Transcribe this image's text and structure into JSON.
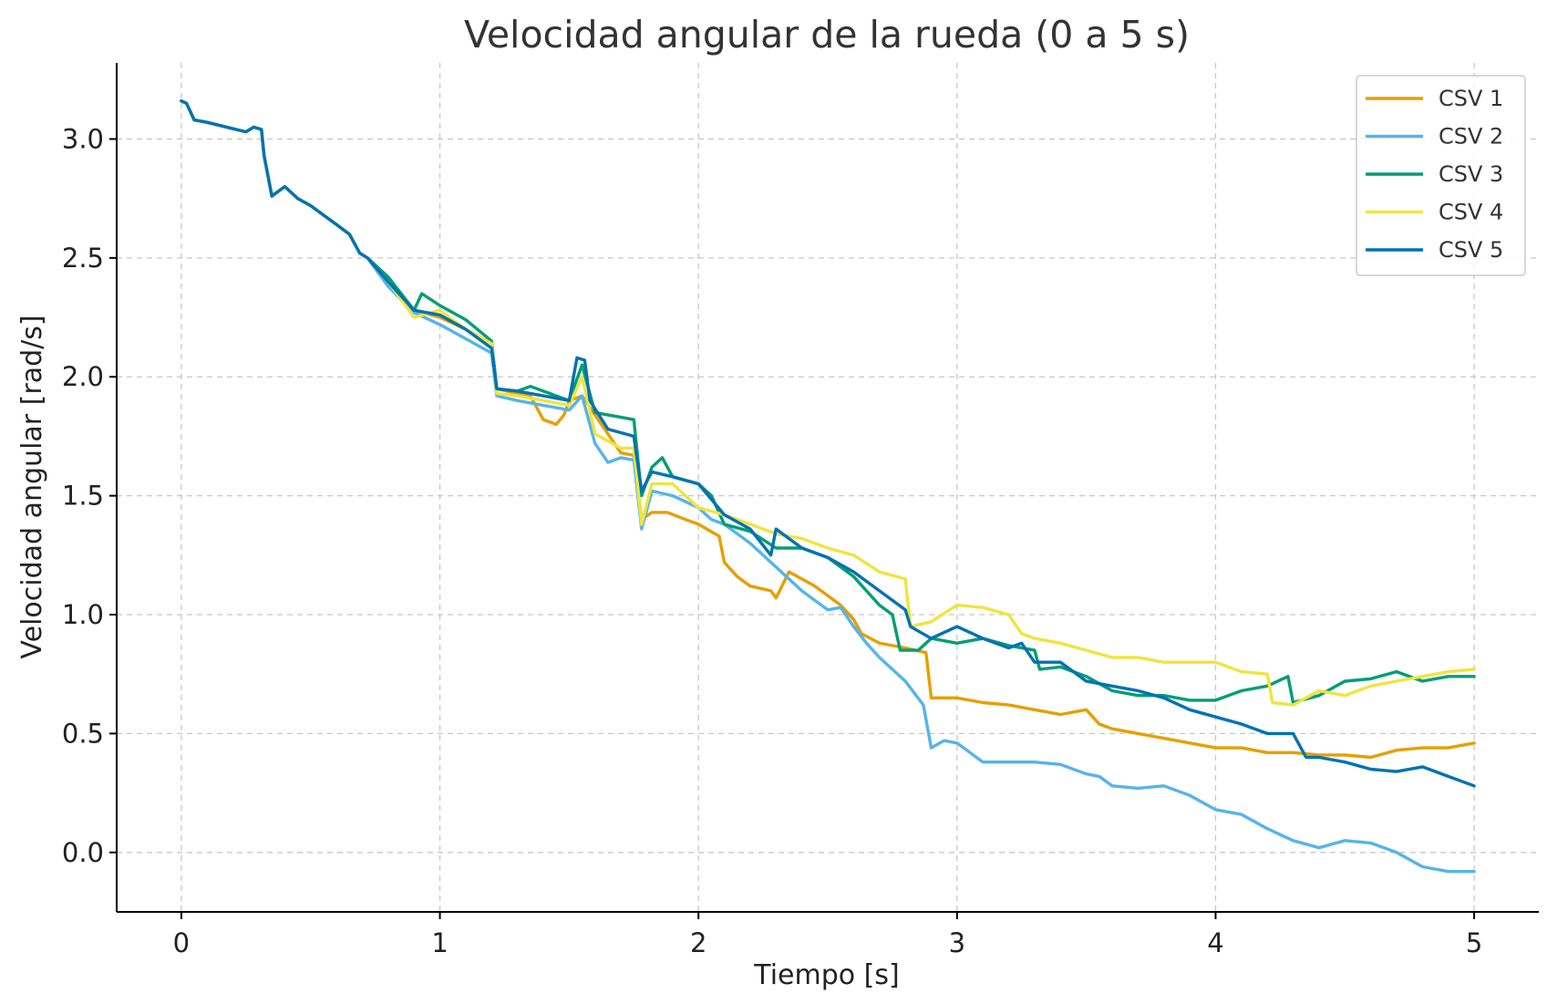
{
  "chart_data": {
    "type": "line",
    "title": "Velocidad angular de la rueda (0 a 5 s)",
    "xlabel": "Tiempo [s]",
    "ylabel": "Velocidad angular [rad/s]",
    "xlim": [
      -0.25,
      5.25
    ],
    "ylim": [
      -0.25,
      3.32
    ],
    "xticks": [
      0,
      1,
      2,
      3,
      4,
      5
    ],
    "yticks": [
      0.0,
      0.5,
      1.0,
      1.5,
      2.0,
      2.5,
      3.0
    ],
    "xtick_labels": [
      "0",
      "1",
      "2",
      "3",
      "4",
      "5"
    ],
    "ytick_labels": [
      "0.0",
      "0.5",
      "1.0",
      "1.5",
      "2.0",
      "2.5",
      "3.0"
    ],
    "grid": true,
    "legend_position": "top-right",
    "series": [
      {
        "name": "CSV 1",
        "color": "#E69F00",
        "x": [
          0,
          0.02,
          0.05,
          0.1,
          0.25,
          0.28,
          0.31,
          0.32,
          0.35,
          0.4,
          0.45,
          0.5,
          0.6,
          0.65,
          0.69,
          0.72,
          0.8,
          0.9,
          1.0,
          1.1,
          1.2,
          1.22,
          1.3,
          1.35,
          1.4,
          1.45,
          1.48,
          1.5,
          1.55,
          1.6,
          1.7,
          1.75,
          1.78,
          1.82,
          1.88,
          1.95,
          2.0,
          2.08,
          2.1,
          2.15,
          2.2,
          2.28,
          2.3,
          2.35,
          2.45,
          2.55,
          2.6,
          2.63,
          2.7,
          2.8,
          2.88,
          2.9,
          3.0,
          3.1,
          3.2,
          3.3,
          3.4,
          3.5,
          3.55,
          3.6,
          3.7,
          3.8,
          3.9,
          4.0,
          4.1,
          4.2,
          4.3,
          4.4,
          4.5,
          4.6,
          4.7,
          4.8,
          4.9,
          5.0
        ],
        "y": [
          3.16,
          3.15,
          3.08,
          3.07,
          3.03,
          3.05,
          3.04,
          2.93,
          2.76,
          2.8,
          2.75,
          2.72,
          2.64,
          2.6,
          2.52,
          2.5,
          2.4,
          2.28,
          2.25,
          2.2,
          2.14,
          1.95,
          1.93,
          1.92,
          1.82,
          1.8,
          1.84,
          1.9,
          1.92,
          1.84,
          1.68,
          1.67,
          1.4,
          1.43,
          1.43,
          1.4,
          1.38,
          1.33,
          1.22,
          1.16,
          1.12,
          1.1,
          1.07,
          1.18,
          1.12,
          1.04,
          0.98,
          0.92,
          0.88,
          0.86,
          0.84,
          0.65,
          0.65,
          0.63,
          0.62,
          0.6,
          0.58,
          0.6,
          0.54,
          0.52,
          0.5,
          0.48,
          0.46,
          0.44,
          0.44,
          0.42,
          0.42,
          0.41,
          0.41,
          0.4,
          0.43,
          0.44,
          0.44,
          0.46
        ]
      },
      {
        "name": "CSV 2",
        "color": "#56B4E9",
        "x": [
          0,
          0.02,
          0.05,
          0.1,
          0.25,
          0.28,
          0.31,
          0.32,
          0.35,
          0.4,
          0.45,
          0.5,
          0.6,
          0.65,
          0.69,
          0.72,
          0.8,
          0.9,
          1.0,
          1.1,
          1.2,
          1.22,
          1.3,
          1.4,
          1.5,
          1.55,
          1.6,
          1.65,
          1.7,
          1.75,
          1.78,
          1.82,
          1.9,
          2.0,
          2.05,
          2.1,
          2.2,
          2.3,
          2.4,
          2.5,
          2.55,
          2.6,
          2.65,
          2.7,
          2.8,
          2.87,
          2.9,
          2.95,
          3.0,
          3.1,
          3.2,
          3.3,
          3.4,
          3.5,
          3.55,
          3.6,
          3.7,
          3.8,
          3.9,
          4.0,
          4.1,
          4.2,
          4.3,
          4.4,
          4.5,
          4.6,
          4.7,
          4.8,
          4.9,
          5.0
        ],
        "y": [
          3.16,
          3.15,
          3.08,
          3.07,
          3.03,
          3.05,
          3.04,
          2.93,
          2.76,
          2.8,
          2.75,
          2.72,
          2.64,
          2.6,
          2.52,
          2.5,
          2.38,
          2.27,
          2.22,
          2.16,
          2.1,
          1.92,
          1.9,
          1.88,
          1.86,
          1.92,
          1.72,
          1.64,
          1.66,
          1.65,
          1.36,
          1.52,
          1.5,
          1.45,
          1.4,
          1.38,
          1.3,
          1.2,
          1.1,
          1.02,
          1.03,
          0.95,
          0.88,
          0.82,
          0.72,
          0.62,
          0.44,
          0.47,
          0.46,
          0.38,
          0.38,
          0.38,
          0.37,
          0.33,
          0.32,
          0.28,
          0.27,
          0.28,
          0.24,
          0.18,
          0.16,
          0.1,
          0.05,
          0.02,
          0.05,
          0.04,
          0.0,
          -0.06,
          -0.08,
          -0.08
        ]
      },
      {
        "name": "CSV 3",
        "color": "#009E73",
        "x": [
          0,
          0.02,
          0.05,
          0.1,
          0.25,
          0.28,
          0.31,
          0.32,
          0.35,
          0.4,
          0.45,
          0.5,
          0.6,
          0.65,
          0.69,
          0.72,
          0.8,
          0.9,
          0.93,
          1.0,
          1.1,
          1.2,
          1.22,
          1.3,
          1.35,
          1.4,
          1.5,
          1.55,
          1.6,
          1.7,
          1.75,
          1.78,
          1.82,
          1.86,
          1.9,
          2.0,
          2.05,
          2.1,
          2.2,
          2.3,
          2.4,
          2.5,
          2.6,
          2.7,
          2.75,
          2.78,
          2.85,
          2.9,
          3.0,
          3.1,
          3.2,
          3.3,
          3.32,
          3.4,
          3.5,
          3.6,
          3.7,
          3.8,
          3.9,
          4.0,
          4.1,
          4.2,
          4.28,
          4.3,
          4.4,
          4.5,
          4.6,
          4.7,
          4.8,
          4.9,
          5.0
        ],
        "y": [
          3.16,
          3.15,
          3.08,
          3.07,
          3.03,
          3.05,
          3.04,
          2.93,
          2.76,
          2.8,
          2.75,
          2.72,
          2.64,
          2.6,
          2.52,
          2.5,
          2.42,
          2.28,
          2.35,
          2.3,
          2.24,
          2.15,
          1.95,
          1.94,
          1.96,
          1.94,
          1.9,
          2.05,
          1.85,
          1.83,
          1.82,
          1.5,
          1.62,
          1.66,
          1.58,
          1.55,
          1.5,
          1.38,
          1.35,
          1.28,
          1.28,
          1.24,
          1.16,
          1.04,
          1.0,
          0.85,
          0.85,
          0.9,
          0.88,
          0.9,
          0.87,
          0.85,
          0.77,
          0.78,
          0.74,
          0.68,
          0.66,
          0.66,
          0.64,
          0.64,
          0.68,
          0.7,
          0.74,
          0.63,
          0.66,
          0.72,
          0.73,
          0.76,
          0.72,
          0.74,
          0.74
        ]
      },
      {
        "name": "CSV 4",
        "color": "#F0E442",
        "x": [
          0,
          0.02,
          0.05,
          0.1,
          0.25,
          0.28,
          0.31,
          0.32,
          0.35,
          0.4,
          0.45,
          0.5,
          0.6,
          0.65,
          0.69,
          0.72,
          0.8,
          0.9,
          1.0,
          1.1,
          1.2,
          1.22,
          1.3,
          1.4,
          1.5,
          1.55,
          1.6,
          1.7,
          1.75,
          1.78,
          1.82,
          1.9,
          2.0,
          2.1,
          2.2,
          2.3,
          2.4,
          2.5,
          2.6,
          2.7,
          2.8,
          2.82,
          2.9,
          3.0,
          3.1,
          3.2,
          3.25,
          3.3,
          3.4,
          3.5,
          3.6,
          3.7,
          3.8,
          3.9,
          4.0,
          4.1,
          4.2,
          4.22,
          4.3,
          4.4,
          4.5,
          4.6,
          4.7,
          4.8,
          4.9,
          5.0
        ],
        "y": [
          3.16,
          3.15,
          3.08,
          3.07,
          3.03,
          3.05,
          3.04,
          2.93,
          2.76,
          2.8,
          2.75,
          2.72,
          2.64,
          2.6,
          2.52,
          2.5,
          2.4,
          2.25,
          2.28,
          2.2,
          2.14,
          1.93,
          1.92,
          1.9,
          1.88,
          2.0,
          1.76,
          1.7,
          1.7,
          1.38,
          1.55,
          1.55,
          1.45,
          1.42,
          1.38,
          1.34,
          1.32,
          1.28,
          1.25,
          1.18,
          1.15,
          0.95,
          0.97,
          1.04,
          1.03,
          1.0,
          0.92,
          0.9,
          0.88,
          0.85,
          0.82,
          0.82,
          0.8,
          0.8,
          0.8,
          0.76,
          0.75,
          0.63,
          0.62,
          0.68,
          0.66,
          0.7,
          0.72,
          0.74,
          0.76,
          0.77
        ]
      },
      {
        "name": "CSV 5",
        "color": "#0072B2",
        "x": [
          0,
          0.02,
          0.05,
          0.1,
          0.25,
          0.28,
          0.31,
          0.32,
          0.35,
          0.4,
          0.45,
          0.5,
          0.6,
          0.65,
          0.69,
          0.72,
          0.8,
          0.9,
          1.0,
          1.1,
          1.2,
          1.22,
          1.3,
          1.4,
          1.5,
          1.53,
          1.56,
          1.58,
          1.65,
          1.75,
          1.78,
          1.82,
          1.9,
          2.0,
          2.1,
          2.2,
          2.28,
          2.3,
          2.4,
          2.5,
          2.6,
          2.7,
          2.8,
          2.82,
          2.9,
          3.0,
          3.1,
          3.2,
          3.25,
          3.3,
          3.4,
          3.5,
          3.6,
          3.7,
          3.8,
          3.9,
          4.0,
          4.1,
          4.2,
          4.3,
          4.35,
          4.4,
          4.5,
          4.6,
          4.7,
          4.8,
          4.9,
          5.0
        ],
        "y": [
          3.16,
          3.15,
          3.08,
          3.07,
          3.03,
          3.05,
          3.04,
          2.93,
          2.76,
          2.8,
          2.75,
          2.72,
          2.64,
          2.6,
          2.52,
          2.5,
          2.4,
          2.28,
          2.26,
          2.2,
          2.12,
          1.95,
          1.94,
          1.92,
          1.9,
          2.08,
          2.07,
          1.9,
          1.78,
          1.75,
          1.52,
          1.6,
          1.58,
          1.55,
          1.42,
          1.36,
          1.25,
          1.36,
          1.28,
          1.24,
          1.18,
          1.1,
          1.02,
          0.95,
          0.9,
          0.95,
          0.9,
          0.86,
          0.88,
          0.8,
          0.8,
          0.72,
          0.7,
          0.68,
          0.65,
          0.6,
          0.57,
          0.54,
          0.5,
          0.5,
          0.4,
          0.4,
          0.38,
          0.35,
          0.34,
          0.36,
          0.32,
          0.28
        ]
      }
    ]
  }
}
